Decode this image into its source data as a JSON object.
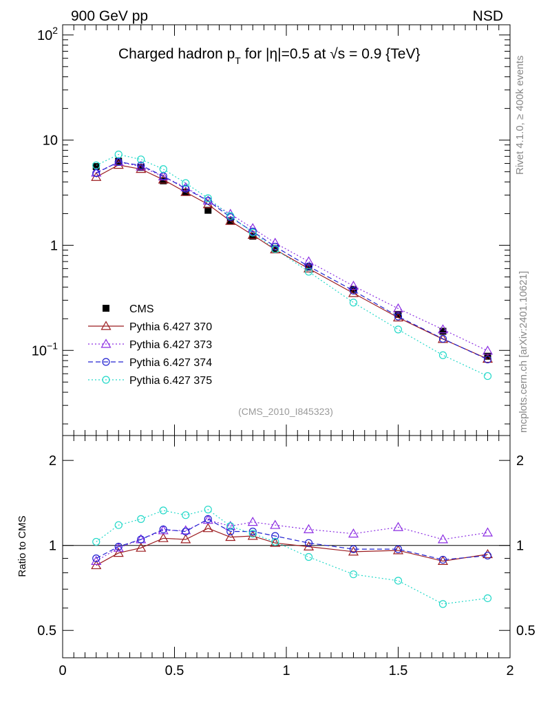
{
  "header": {
    "left": "900 GeV pp",
    "right": "NSD",
    "title_pre": "Charged hadron p",
    "title_sub": "T",
    "title_mid": " for |η|=0.5 at ",
    "title_root": "√s",
    "title_post": " = 0.9 {TeV}",
    "analysis_id": "(CMS_2010_I845323)"
  },
  "side_text": {
    "top": "Rivet 4.1.0, ≥ 400k events",
    "bottom": "mcplots.cern.ch [arXiv:2401.10621]"
  },
  "ratio_ylabel": "Ratio to CMS",
  "colors": {
    "cms": "#000000",
    "p370": "#9b1b1f",
    "p373": "#8a2be2",
    "p374": "#2020d0",
    "p375": "#20d8c8"
  },
  "chart_data": [
    {
      "type": "line",
      "panel": "main",
      "yscale": "log",
      "xlim": [
        0,
        2
      ],
      "ylim": [
        0.0155,
        125
      ],
      "ytick_labels": [
        "10",
        "1"
      ],
      "ytick_exp_labels": [
        {
          "base": "10",
          "exp": "2",
          "value": 100
        },
        {
          "base": "10",
          "exp": "−1",
          "value": 0.1
        }
      ],
      "x": [
        0.15,
        0.25,
        0.35,
        0.45,
        0.55,
        0.65,
        0.75,
        0.85,
        0.95,
        1.1,
        1.3,
        1.5,
        1.7,
        1.9
      ],
      "series": [
        {
          "name": "CMS",
          "key": "cms",
          "values": [
            5.6,
            6.3,
            5.5,
            4.1,
            3.2,
            2.15,
            1.72,
            1.22,
            0.93,
            0.62,
            0.38,
            0.22,
            0.152,
            0.088
          ]
        },
        {
          "name": "Pythia 6.427 370",
          "key": "p370",
          "values": [
            4.45,
            5.8,
            5.3,
            4.2,
            3.2,
            2.45,
            1.7,
            1.25,
            0.91,
            0.6,
            0.35,
            0.205,
            0.128,
            0.083
          ]
        },
        {
          "name": "Pythia 6.427 373",
          "key": "p373",
          "values": [
            4.9,
            6.2,
            5.6,
            4.5,
            3.55,
            2.65,
            1.98,
            1.45,
            1.05,
            0.7,
            0.41,
            0.25,
            0.158,
            0.099
          ]
        },
        {
          "name": "Pythia 6.427 374",
          "key": "p374",
          "values": [
            4.85,
            6.2,
            5.75,
            4.55,
            3.45,
            2.65,
            1.85,
            1.35,
            0.97,
            0.63,
            0.37,
            0.21,
            0.129,
            0.082
          ]
        },
        {
          "name": "Pythia 6.427 375",
          "key": "p375",
          "values": [
            5.75,
            7.3,
            6.55,
            5.3,
            3.9,
            2.8,
            1.9,
            1.32,
            0.92,
            0.56,
            0.285,
            0.158,
            0.09,
            0.057
          ]
        }
      ]
    },
    {
      "type": "line",
      "panel": "ratio",
      "yscale": "log",
      "xlim": [
        0,
        2
      ],
      "ylim": [
        0.4,
        2.45
      ],
      "ylabel": "Ratio to CMS",
      "ytick_labels": [
        "2",
        "1",
        "0.5"
      ],
      "xtick_labels": [
        "0",
        "0.5",
        "1",
        "1.5",
        "2"
      ],
      "x": [
        0.15,
        0.25,
        0.35,
        0.45,
        0.55,
        0.65,
        0.75,
        0.85,
        0.95,
        1.1,
        1.3,
        1.5,
        1.7,
        1.9
      ],
      "series": [
        {
          "name": "Pythia 6.427 370",
          "key": "p370",
          "values": [
            0.85,
            0.94,
            0.98,
            1.06,
            1.05,
            1.15,
            1.07,
            1.08,
            1.02,
            0.99,
            0.95,
            0.96,
            0.88,
            0.93
          ]
        },
        {
          "name": "Pythia 6.427 373",
          "key": "p373",
          "values": [
            0.88,
            0.98,
            1.05,
            1.13,
            1.13,
            1.23,
            1.17,
            1.21,
            1.18,
            1.14,
            1.1,
            1.16,
            1.05,
            1.11
          ]
        },
        {
          "name": "Pythia 6.427 374",
          "key": "p374",
          "values": [
            0.9,
            0.99,
            1.05,
            1.14,
            1.12,
            1.24,
            1.12,
            1.12,
            1.08,
            1.02,
            0.97,
            0.97,
            0.89,
            0.92
          ]
        },
        {
          "name": "Pythia 6.427 375",
          "key": "p375",
          "values": [
            1.03,
            1.18,
            1.24,
            1.33,
            1.28,
            1.34,
            1.17,
            1.1,
            1.03,
            0.91,
            0.79,
            0.75,
            0.62,
            0.65
          ]
        }
      ]
    }
  ]
}
